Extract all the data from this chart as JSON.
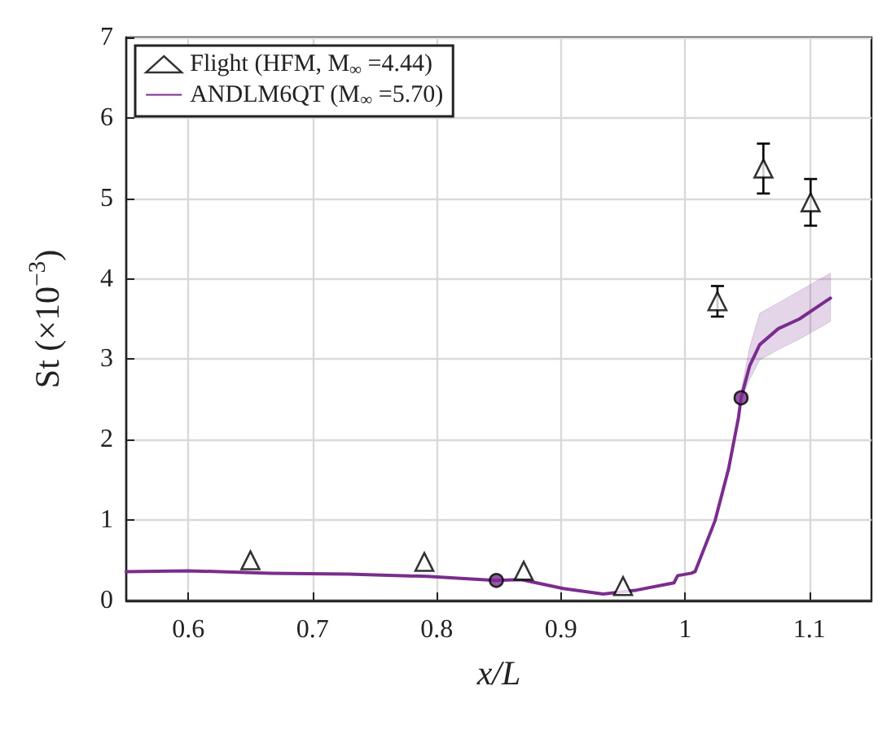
{
  "chart_data": {
    "type": "line",
    "xlabel": "x/L",
    "ylabel": "St (×10$^{−3}$)",
    "xlim": [
      0.55,
      1.15
    ],
    "xticks": [
      0.6,
      0.7,
      0.8,
      0.9,
      1,
      1.1
    ],
    "ylim": [
      0,
      7
    ],
    "yticks": [
      0,
      1,
      2,
      3,
      4,
      5,
      6,
      7
    ],
    "grid": true,
    "legend": "top left",
    "series": [
      {
        "name": "Flight (HFM, M$_{∞}$ =4.44)",
        "type": "scatter",
        "marker": "triangle",
        "color": "#000000",
        "x": [
          0.65,
          0.79,
          0.87,
          0.95,
          1.026,
          1.063,
          1.101
        ],
        "values": [
          0.5,
          0.48,
          0.37,
          0.18,
          3.72,
          5.37,
          4.95
        ],
        "errors": [
          null,
          null,
          null,
          null,
          0.19,
          0.31,
          0.29
        ]
      },
      {
        "name": "ANDLM6QT (M$_{∞}$ =5.70)",
        "marker": "none",
        "line_style": "solid",
        "color": "#7b2d8e",
        "x": [
          0.55,
          0.6,
          0.666,
          0.729,
          0.792,
          0.847,
          0.868,
          0.902,
          0.934,
          0.961,
          0.991,
          0.994,
          1.005,
          1.008,
          1.024,
          1.035,
          1.043,
          1.045,
          1.052,
          1.06,
          1.075,
          1.092,
          1.117
        ],
        "values": [
          0.36,
          0.37,
          0.34,
          0.33,
          0.3,
          0.25,
          0.26,
          0.15,
          0.08,
          0.13,
          0.22,
          0.31,
          0.34,
          0.36,
          0.99,
          1.64,
          2.28,
          2.52,
          2.92,
          3.18,
          3.38,
          3.5,
          3.76
        ],
        "lower": [
          0.36,
          0.37,
          0.34,
          0.33,
          0.3,
          0.25,
          0.26,
          0.15,
          0.08,
          0.13,
          0.22,
          0.31,
          0.34,
          0.36,
          0.99,
          1.64,
          2.28,
          2.5,
          2.75,
          2.99,
          3.12,
          3.25,
          3.47
        ],
        "upper": [
          0.36,
          0.37,
          0.34,
          0.33,
          0.3,
          0.25,
          0.26,
          0.15,
          0.08,
          0.13,
          0.22,
          0.31,
          0.34,
          0.36,
          0.99,
          1.64,
          2.28,
          2.6,
          3.15,
          3.57,
          3.7,
          3.85,
          4.07
        ]
      },
      {
        "type": "scatter",
        "marker": "circle",
        "color": "#7b2d8e",
        "x": [
          0.848,
          1.045
        ],
        "values": [
          0.25,
          2.52
        ]
      }
    ]
  }
}
